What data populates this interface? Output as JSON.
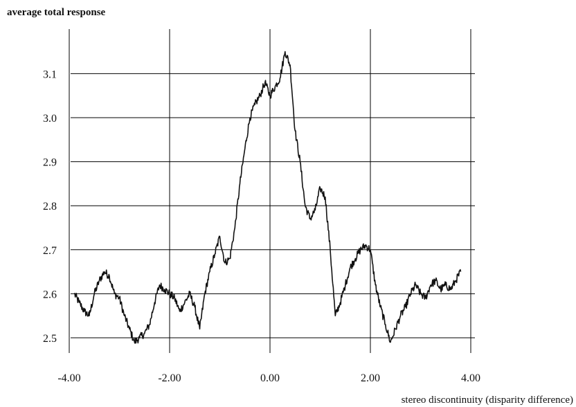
{
  "chart_data": {
    "type": "line",
    "ylabel": "average total response",
    "xlabel": "stereo discontinuity (disparity difference)",
    "xlim": [
      -4.0,
      4.0
    ],
    "ylim": [
      2.47,
      3.18
    ],
    "xticks": [
      -4.0,
      -2.0,
      0.0,
      2.0,
      4.0
    ],
    "xtick_labels": [
      "-4.00",
      "-2.00",
      "0.00",
      "2.00",
      "4.00"
    ],
    "yticks": [
      2.5,
      2.6,
      2.7,
      2.8,
      2.9,
      3.0,
      3.1
    ],
    "ytick_labels": [
      "2.5",
      "2.6",
      "2.7",
      "2.8",
      "2.9",
      "3.0",
      "3.1"
    ],
    "grid": true,
    "legend": "none",
    "series": [
      {
        "x": [
          -3.9,
          -3.8,
          -3.7,
          -3.6,
          -3.5,
          -3.4,
          -3.3,
          -3.2,
          -3.1,
          -3.0,
          -2.9,
          -2.8,
          -2.7,
          -2.6,
          -2.5,
          -2.4,
          -2.3,
          -2.2,
          -2.1,
          -2.0,
          -1.9,
          -1.8,
          -1.7,
          -1.6,
          -1.5,
          -1.4,
          -1.3,
          -1.2,
          -1.1,
          -1.0,
          -0.9,
          -0.8,
          -0.7,
          -0.6,
          -0.5,
          -0.4,
          -0.3,
          -0.2,
          -0.1,
          0.0,
          0.1,
          0.2,
          0.3,
          0.4,
          0.5,
          0.6,
          0.7,
          0.8,
          0.9,
          1.0,
          1.1,
          1.2,
          1.3,
          1.4,
          1.5,
          1.6,
          1.7,
          1.8,
          1.9,
          2.0,
          2.1,
          2.2,
          2.3,
          2.4,
          2.5,
          2.6,
          2.7,
          2.8,
          2.9,
          3.0,
          3.1,
          3.2,
          3.3,
          3.4,
          3.5,
          3.6,
          3.7,
          3.8
        ],
        "y": [
          2.6,
          2.58,
          2.56,
          2.55,
          2.6,
          2.63,
          2.65,
          2.64,
          2.6,
          2.59,
          2.55,
          2.52,
          2.49,
          2.5,
          2.51,
          2.53,
          2.58,
          2.62,
          2.61,
          2.6,
          2.59,
          2.56,
          2.58,
          2.6,
          2.57,
          2.52,
          2.6,
          2.65,
          2.69,
          2.73,
          2.67,
          2.68,
          2.75,
          2.85,
          2.93,
          3.0,
          3.03,
          3.05,
          3.08,
          3.05,
          3.07,
          3.09,
          3.15,
          3.12,
          2.97,
          2.9,
          2.8,
          2.77,
          2.79,
          2.84,
          2.82,
          2.7,
          2.55,
          2.58,
          2.62,
          2.66,
          2.68,
          2.7,
          2.71,
          2.7,
          2.62,
          2.57,
          2.53,
          2.49,
          2.52,
          2.55,
          2.57,
          2.6,
          2.62,
          2.6,
          2.59,
          2.62,
          2.63,
          2.61,
          2.62,
          2.61,
          2.63,
          2.65
        ]
      }
    ]
  }
}
